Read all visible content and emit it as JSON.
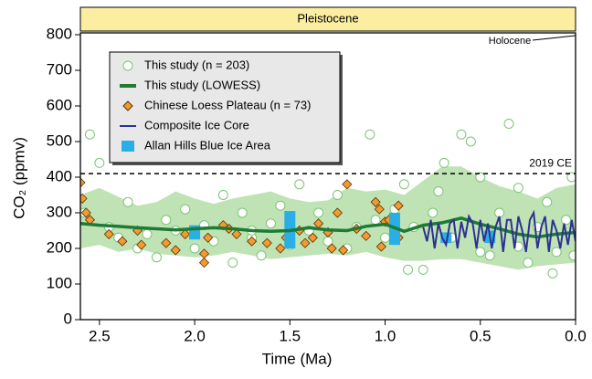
{
  "chart_data": {
    "type": "scatter",
    "period_label": "Pleistocene",
    "period_color": "#fbeea0",
    "xlabel": "Time (Ma)",
    "ylabel": "CO₂ (ppmv)",
    "xlim": [
      2.6,
      0
    ],
    "ylim": [
      0,
      800
    ],
    "xticks": [
      2.5,
      {
        "value": 2.0,
        "label": "2.0"
      },
      1.5,
      {
        "value": 1.0,
        "label": "1.0"
      },
      0.5,
      {
        "value": 0.0,
        "label": "0.0"
      }
    ],
    "yticks": [
      0,
      100,
      200,
      300,
      400,
      500,
      600,
      700,
      800
    ],
    "hline": {
      "value": 410,
      "label": "2019 CE"
    },
    "annotation": {
      "text": "Holocene",
      "x": 0
    },
    "legend": "upper left",
    "series": [
      {
        "name": "This study (n = 203)",
        "type": "scatter",
        "marker": "circle",
        "color": "#7cc576",
        "x": [
          2.55,
          2.5,
          2.58,
          2.45,
          2.4,
          2.35,
          2.3,
          2.25,
          2.2,
          2.15,
          2.1,
          2.05,
          2.0,
          1.95,
          1.9,
          1.85,
          1.8,
          1.75,
          1.7,
          1.65,
          1.6,
          1.55,
          1.5,
          1.45,
          1.4,
          1.35,
          1.3,
          1.25,
          1.2,
          1.15,
          1.08,
          1.05,
          1.0,
          0.95,
          0.9,
          0.85,
          0.8,
          0.75,
          0.72,
          0.69,
          0.65,
          0.6,
          0.55,
          0.5,
          0.45,
          0.4,
          0.35,
          0.3,
          0.25,
          0.2,
          0.15,
          0.1,
          0.05,
          0.02,
          0.01,
          0.12,
          0.3,
          0.5,
          0.88,
          1.7
        ],
        "values": [
          520,
          440,
          300,
          260,
          230,
          330,
          200,
          240,
          175,
          280,
          250,
          310,
          200,
          265,
          220,
          350,
          160,
          300,
          230,
          180,
          270,
          320,
          210,
          380,
          250,
          300,
          220,
          350,
          200,
          260,
          520,
          280,
          230,
          310,
          380,
          260,
          140,
          300,
          360,
          440,
          230,
          520,
          500,
          400,
          180,
          300,
          550,
          370,
          160,
          260,
          330,
          190,
          280,
          400,
          180,
          130,
          205,
          190,
          140,
          250
        ]
      },
      {
        "name": "This study (LOWESS)",
        "type": "line",
        "color": "#1e7b34",
        "band_color": "#bfe3b4",
        "x": [
          2.6,
          2.5,
          2.4,
          2.3,
          2.2,
          2.1,
          2.0,
          1.9,
          1.8,
          1.7,
          1.6,
          1.5,
          1.4,
          1.3,
          1.2,
          1.1,
          1.0,
          0.9,
          0.8,
          0.7,
          0.6,
          0.5,
          0.4,
          0.3,
          0.2,
          0.1,
          0.0
        ],
        "values": [
          270,
          265,
          262,
          258,
          255,
          252,
          255,
          258,
          255,
          250,
          248,
          250,
          258,
          252,
          250,
          262,
          268,
          248,
          265,
          272,
          285,
          268,
          255,
          240,
          232,
          240,
          245
        ],
        "upper": [
          350,
          370,
          345,
          320,
          330,
          360,
          340,
          325,
          340,
          350,
          360,
          340,
          330,
          335,
          370,
          360,
          365,
          350,
          390,
          430,
          430,
          400,
          375,
          360,
          340,
          370,
          380
        ],
        "lower": [
          200,
          210,
          190,
          200,
          185,
          180,
          175,
          180,
          190,
          180,
          170,
          175,
          180,
          185,
          180,
          190,
          175,
          165,
          165,
          170,
          170,
          160,
          150,
          140,
          150,
          155,
          160
        ]
      },
      {
        "name": "Chinese Loess Plateau (n = 73)",
        "type": "scatter",
        "marker": "diamond",
        "color": "#f39a30",
        "x": [
          2.6,
          2.59,
          2.57,
          2.55,
          2.45,
          2.38,
          2.3,
          2.28,
          2.15,
          2.1,
          2.05,
          1.95,
          1.95,
          1.93,
          1.85,
          1.82,
          1.78,
          1.7,
          1.62,
          1.55,
          1.52,
          1.45,
          1.42,
          1.38,
          1.35,
          1.3,
          1.28,
          1.25,
          1.22,
          1.2,
          1.15,
          1.1,
          1.05,
          1.03,
          1.0,
          0.98,
          0.95,
          0.93,
          0.93,
          1.02
        ],
        "values": [
          385,
          340,
          300,
          280,
          240,
          220,
          250,
          210,
          215,
          195,
          240,
          185,
          160,
          230,
          265,
          255,
          240,
          220,
          215,
          200,
          230,
          250,
          215,
          230,
          270,
          245,
          200,
          300,
          195,
          380,
          255,
          235,
          330,
          310,
          275,
          280,
          250,
          320,
          230,
          205
        ]
      },
      {
        "name": "Composite Ice Core",
        "type": "line",
        "color": "#2e3192",
        "x": [
          0.8,
          0.78,
          0.76,
          0.74,
          0.72,
          0.7,
          0.68,
          0.66,
          0.64,
          0.62,
          0.6,
          0.58,
          0.56,
          0.54,
          0.52,
          0.5,
          0.48,
          0.46,
          0.44,
          0.42,
          0.4,
          0.38,
          0.36,
          0.34,
          0.32,
          0.3,
          0.28,
          0.26,
          0.24,
          0.22,
          0.2,
          0.18,
          0.16,
          0.14,
          0.12,
          0.1,
          0.08,
          0.06,
          0.04,
          0.02,
          0.0
        ],
        "values": [
          260,
          220,
          280,
          200,
          270,
          230,
          210,
          270,
          280,
          200,
          275,
          230,
          290,
          270,
          200,
          280,
          220,
          270,
          200,
          260,
          290,
          190,
          280,
          280,
          200,
          290,
          250,
          190,
          280,
          300,
          200,
          260,
          290,
          190,
          280,
          250,
          200,
          270,
          210,
          280,
          220
        ]
      },
      {
        "name": "Allan Hills Blue Ice Area",
        "type": "bar",
        "color": "#29aee6",
        "x": [
          2.0,
          1.5,
          0.95,
          0.68,
          0.45
        ],
        "low": [
          225,
          200,
          210,
          215,
          215
        ],
        "high": [
          265,
          305,
          300,
          245,
          250
        ]
      }
    ]
  }
}
